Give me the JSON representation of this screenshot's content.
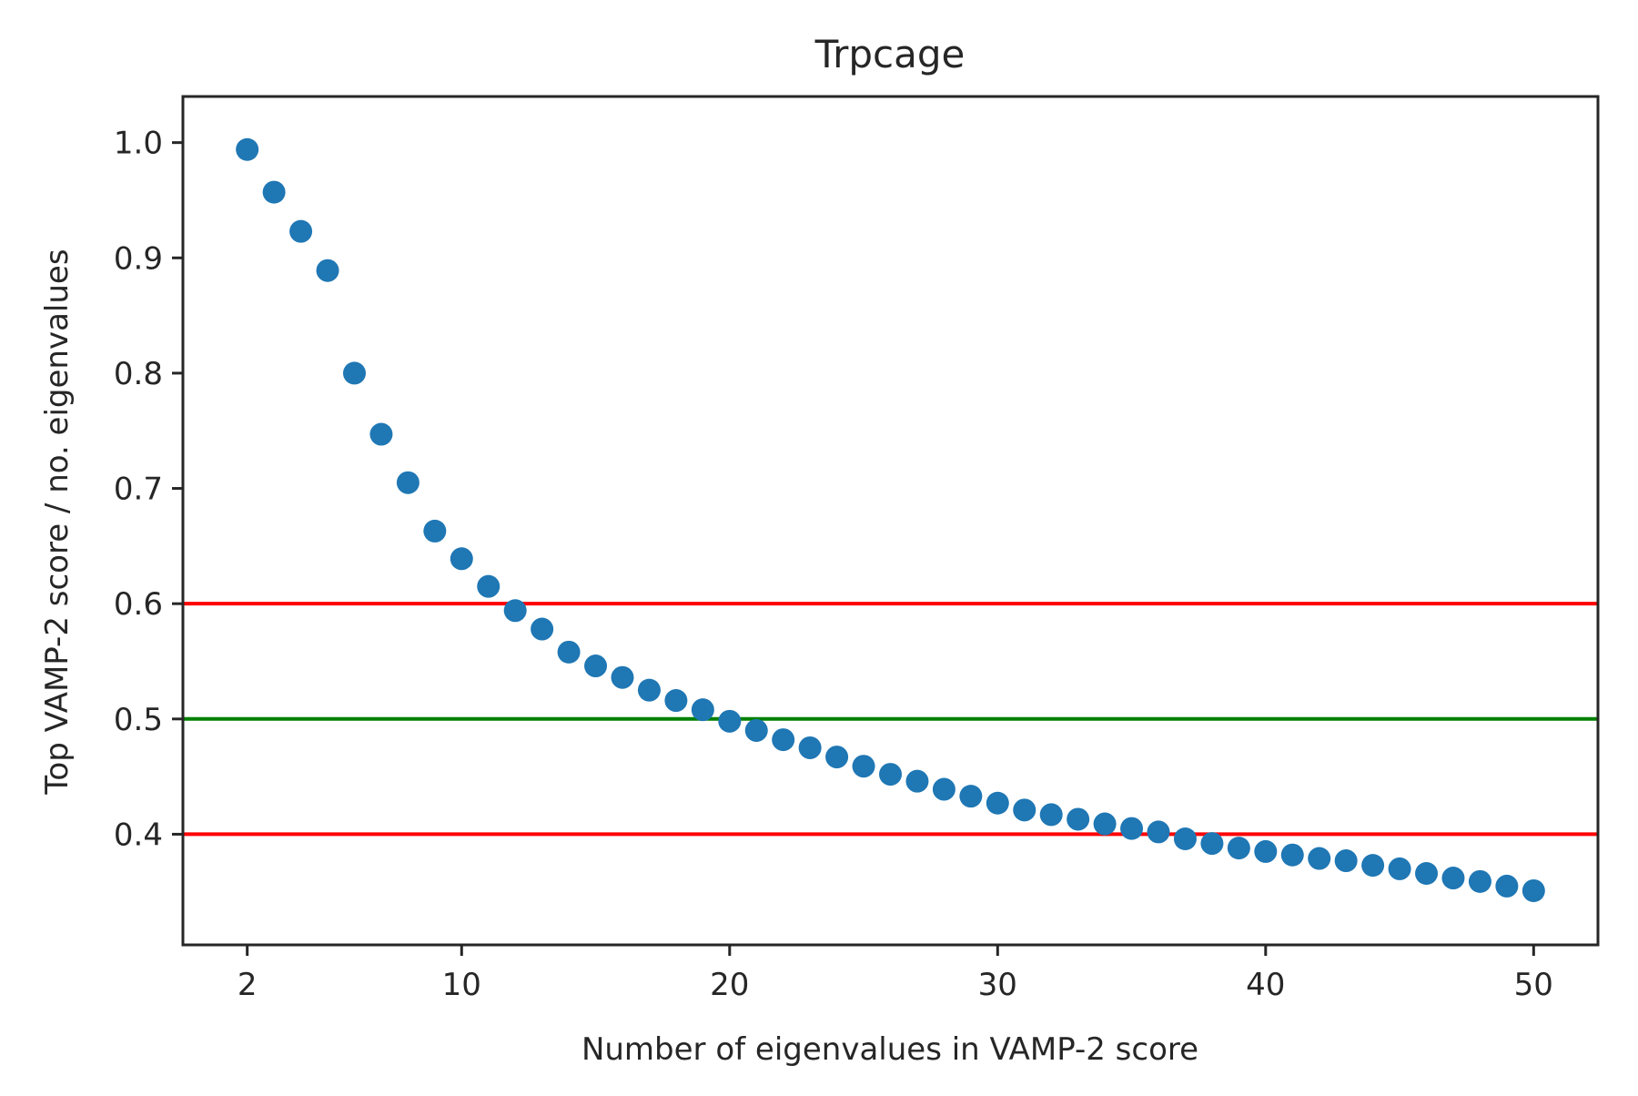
{
  "chart_data": {
    "type": "scatter",
    "title": "Trpcage",
    "xlabel": "Number of eigenvalues in VAMP-2 score",
    "ylabel": "Top VAMP-2 score / no. eigenvalues",
    "xlim": [
      -0.4,
      52.4
    ],
    "ylim": [
      0.304,
      1.04
    ],
    "xticks": [
      2,
      10,
      20,
      30,
      40,
      50
    ],
    "yticks": [
      0.4,
      0.5,
      0.6,
      0.7,
      0.8,
      0.9,
      1.0
    ],
    "ytick_labels": [
      "0.4",
      "0.5",
      "0.6",
      "0.7",
      "0.8",
      "0.9",
      "1.0"
    ],
    "grid": false,
    "series": [
      {
        "color": "#1f77b4",
        "x": [
          2,
          3,
          4,
          5,
          6,
          7,
          8,
          9,
          10,
          11,
          12,
          13,
          14,
          15,
          16,
          17,
          18,
          19,
          20,
          21,
          22,
          23,
          24,
          25,
          26,
          27,
          28,
          29,
          30,
          31,
          32,
          33,
          34,
          35,
          36,
          37,
          38,
          39,
          40,
          41,
          42,
          43,
          44,
          45,
          46,
          47,
          48,
          49,
          50
        ],
        "y": [
          0.994,
          0.957,
          0.923,
          0.889,
          0.8,
          0.747,
          0.705,
          0.663,
          0.639,
          0.615,
          0.594,
          0.578,
          0.558,
          0.546,
          0.536,
          0.525,
          0.516,
          0.508,
          0.498,
          0.49,
          0.482,
          0.475,
          0.467,
          0.459,
          0.452,
          0.446,
          0.439,
          0.433,
          0.427,
          0.421,
          0.417,
          0.413,
          0.409,
          0.405,
          0.402,
          0.396,
          0.392,
          0.388,
          0.385,
          0.382,
          0.379,
          0.377,
          0.373,
          0.37,
          0.366,
          0.362,
          0.359,
          0.355,
          0.351
        ]
      }
    ],
    "hlines": [
      {
        "y": 0.6,
        "color": "#ff0000"
      },
      {
        "y": 0.5,
        "color": "#008000"
      },
      {
        "y": 0.4,
        "color": "#ff0000"
      }
    ]
  }
}
